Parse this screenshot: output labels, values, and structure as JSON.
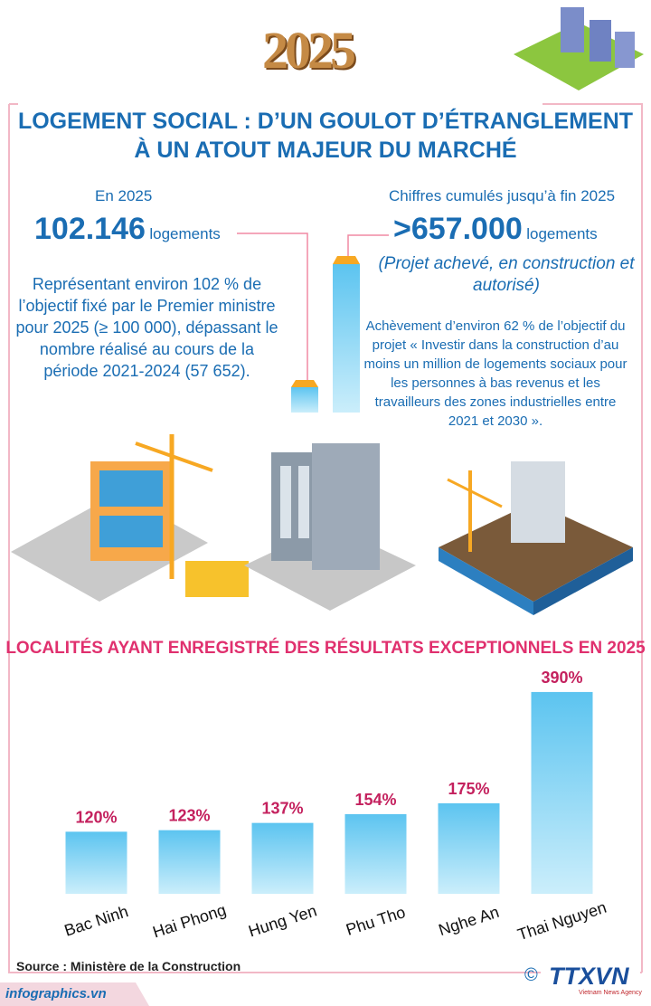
{
  "header": {
    "year": "2025",
    "title_line1": "LOGEMENT SOCIAL : D’UN GOULOT D’ÉTRANGLEMENT",
    "title_line2": "À UN ATOUT MAJEUR DU MARCHÉ"
  },
  "left": {
    "label": "En 2025",
    "number": "102.146",
    "unit": "logements",
    "text": "Représentant environ 102 % de l’objectif fixé par le Premier ministre pour 2025 (≥ 100 000), dépassant le nombre réalisé au cours de la période 2021-2024 (57 652)."
  },
  "right": {
    "label": "Chiffres cumulés jusqu’à fin 2025",
    "number": ">657.000",
    "unit": "logements",
    "note": "(Projet achevé, en construction et autorisé)",
    "text": "Achèvement d’environ 62 % de l’objectif du projet « Investir dans la construction d’au moins un million de logements sociaux pour les personnes à bas revenus et les travailleurs des zones industrielles entre 2021 et 2030 »."
  },
  "chart_data": {
    "type": "bar",
    "title": "LOCALITÉS AYANT ENREGISTRÉ DES RÉSULTATS EXCEPTIONNELS EN 2025",
    "categories": [
      "Bac Ninh",
      "Hai Phong",
      "Hung Yen",
      "Phu Tho",
      "Nghe An",
      "Thai Nguyen"
    ],
    "values": [
      120,
      123,
      137,
      154,
      175,
      390
    ],
    "value_labels": [
      "120%",
      "123%",
      "137%",
      "154%",
      "175%",
      "390%"
    ],
    "color": "#3fb4e8"
  },
  "footer": {
    "source": "Source : Ministère de la Construction",
    "site": "infographics.vn",
    "copyright": "©",
    "logo": "TTXVN",
    "agency": "Vietnam News Agency"
  }
}
